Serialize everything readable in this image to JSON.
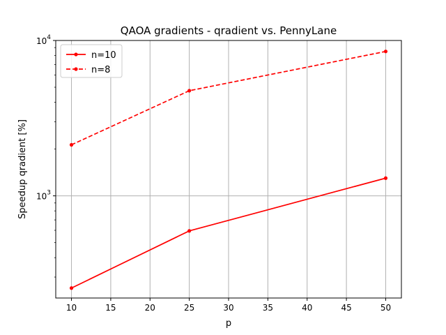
{
  "chart_data": {
    "type": "line",
    "title": "QAOA gradients - qradient vs. PennyLane",
    "xlabel": "p",
    "ylabel": "Speedup qradient [%]",
    "yscale": "log",
    "xlim": [
      8,
      52
    ],
    "ylim": [
      220,
      10000
    ],
    "grid": true,
    "legend_position": "top-left",
    "x_ticks": [
      10,
      15,
      20,
      25,
      30,
      35,
      40,
      45,
      50
    ],
    "y_ticks": [
      {
        "value": 1000,
        "base": "10",
        "exp": "3"
      },
      {
        "value": 10000,
        "base": "10",
        "exp": "4"
      }
    ],
    "series": [
      {
        "name": "n=10",
        "style": "solid",
        "color": "#ff0000",
        "x": [
          10,
          25,
          50
        ],
        "y": [
          255,
          595,
          1300
        ]
      },
      {
        "name": "n=8",
        "style": "dashed",
        "color": "#ff0000",
        "x": [
          10,
          25,
          50
        ],
        "y": [
          2130,
          4750,
          8500
        ]
      }
    ]
  }
}
